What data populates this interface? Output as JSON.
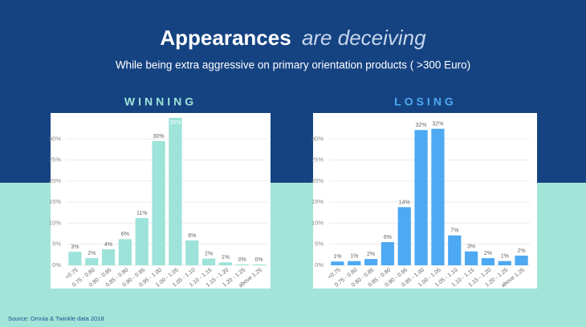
{
  "header": {
    "title_bold": "Appearances",
    "title_light": "are deceiving",
    "subtitle": "While being extra aggressive on primary orientation products ( >300 Euro)"
  },
  "source": "Source: Omnia & Twinkle data 2018",
  "chart_data": [
    {
      "type": "bar",
      "title": "WINNING",
      "categories": [
        "<0.75",
        "0.75 - 0.80",
        "0.80 - 0.85",
        "0.85 - 0.90",
        "0.90 - 0.95",
        "0.95 - 1.00",
        "1.00 - 1.05",
        "1.05 - 1.10",
        "1.10 - 1.15",
        "1.15 - 1.20",
        "1.20 - 1.25",
        "above 1.25"
      ],
      "values": [
        3.2,
        1.7,
        3.8,
        6.2,
        11.2,
        29.5,
        35,
        5.9,
        1.6,
        0.7,
        0.2,
        0.2
      ],
      "value_labels": [
        "3%",
        "2%",
        "4%",
        "6%",
        "11%",
        "30%",
        "35%",
        "6%",
        "2%",
        "1%",
        "0%",
        "0%"
      ],
      "color": "#9de3d9",
      "ylim": [
        0,
        35
      ],
      "yticks": [
        {
          "value": 0,
          "label": "0%"
        },
        {
          "value": 5,
          "label": "5%"
        },
        {
          "value": 10,
          "label": "10%"
        },
        {
          "value": 15,
          "label": "15%"
        },
        {
          "value": 20,
          "label": "20%"
        },
        {
          "value": 25,
          "label": "25%"
        },
        {
          "value": 30,
          "label": "30%"
        }
      ],
      "grid": true
    },
    {
      "type": "bar",
      "title": "LOSING",
      "categories": [
        "<0.75",
        "0.75 - 0.80",
        "0.80 - 0.85",
        "0.85 - 0.90",
        "0.90 - 0.95",
        "0.95 - 1.00",
        "1.00 - 1.05",
        "1.05 - 1.10",
        "1.10 - 1.15",
        "1.15 - 1.20",
        "1.20 - 1.25",
        "above 1.25"
      ],
      "values": [
        0.9,
        1.0,
        1.5,
        5.5,
        13.8,
        32.1,
        32.4,
        7.1,
        3.3,
        1.7,
        1.0,
        2.3
      ],
      "value_labels": [
        "1%",
        "1%",
        "2%",
        "6%",
        "14%",
        "32%",
        "32%",
        "7%",
        "3%",
        "2%",
        "1%",
        "2%"
      ],
      "color": "#4ea9f3",
      "ylim": [
        0,
        35
      ],
      "yticks": [
        {
          "value": 0,
          "label": "0%"
        },
        {
          "value": 5,
          "label": "5%"
        },
        {
          "value": 10,
          "label": "10%"
        },
        {
          "value": 15,
          "label": "15%"
        },
        {
          "value": 20,
          "label": "20%"
        },
        {
          "value": 25,
          "label": "25%"
        },
        {
          "value": 30,
          "label": "30%"
        }
      ],
      "grid": true
    }
  ]
}
